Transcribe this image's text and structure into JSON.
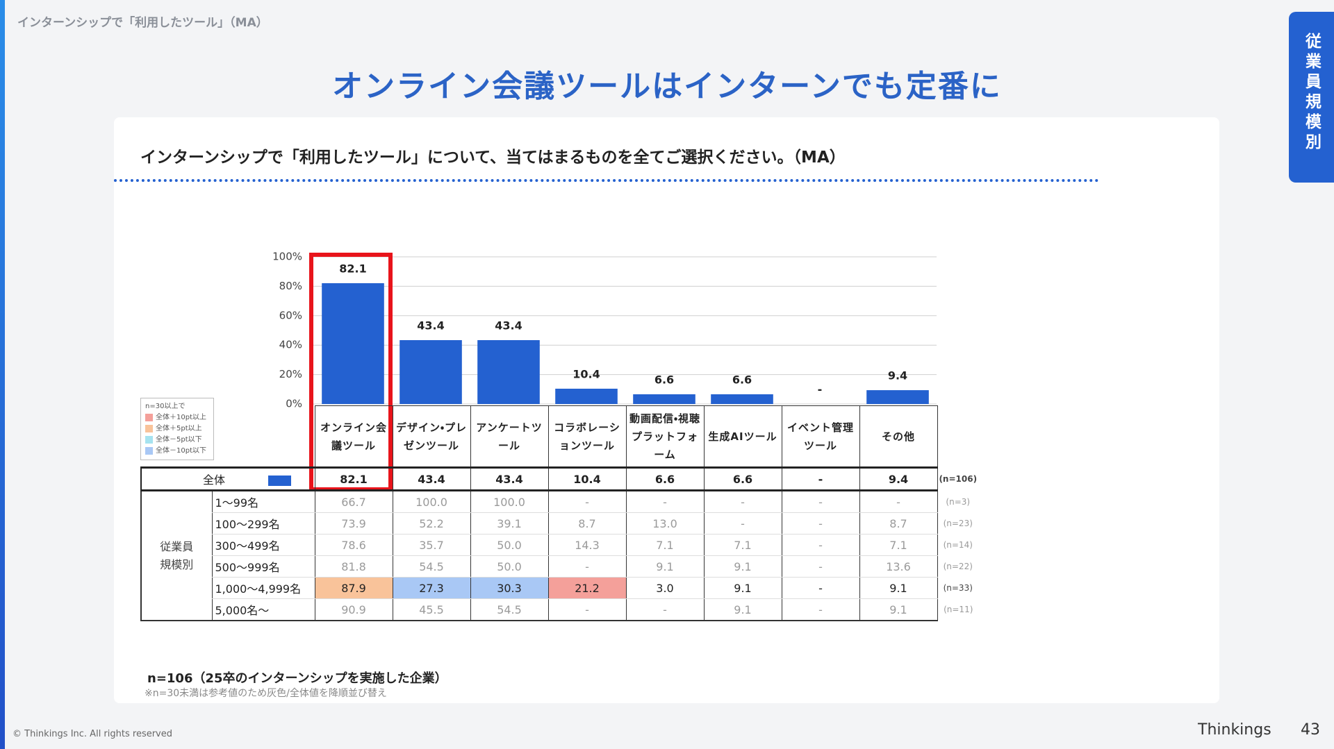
{
  "header": {
    "breadcrumb": "インターンシップで「利用したツール」（MA）",
    "title": "オンライン会議ツールはインターンでも定番に",
    "tab": "従業員規模別"
  },
  "question": "インターンシップで「利用したツール」について、当てはまるものを全てご選択ください。（MA）",
  "chart_data": {
    "type": "bar",
    "categories": [
      "オンライン会議ツール",
      "デザイン・プレゼンツール",
      "アンケートツール",
      "コラボレーションツール",
      "動画配信・視聴プラットフォーム",
      "生成AIツール",
      "イベント管理ツール",
      "その他"
    ],
    "values": [
      82.1,
      43.4,
      43.4,
      10.4,
      6.6,
      6.6,
      null,
      9.4
    ],
    "value_labels": [
      "82.1",
      "43.4",
      "43.4",
      "10.4",
      "6.6",
      "6.6",
      "-",
      "9.4"
    ],
    "color": "#2461d0",
    "ylim": [
      0,
      100
    ],
    "yticks": [
      {
        "value": 0,
        "label": "0%"
      },
      {
        "value": 20,
        "label": "20%"
      },
      {
        "value": 40,
        "label": "40%"
      },
      {
        "value": 60,
        "label": "60%"
      },
      {
        "value": 80,
        "label": "80%"
      },
      {
        "value": 100,
        "label": "100%"
      }
    ],
    "grid": true
  },
  "legend": {
    "title": "n=30以上で",
    "items": [
      {
        "label": "全体＋10pt以上",
        "color": "#f4a09a"
      },
      {
        "label": "全体＋5pt以上",
        "color": "#f9c39a"
      },
      {
        "label": "全体－5pt以下",
        "color": "#a6e3f0"
      },
      {
        "label": "全体－10pt以下",
        "color": "#a9c8f5"
      }
    ]
  },
  "table": {
    "total_label": "全体",
    "total_n": "(n=106)",
    "group": "従業員規模別",
    "rows": [
      {
        "name": "1〜99名",
        "n": "(n=3)",
        "muted": true,
        "cells": [
          "66.7",
          "100.0",
          "100.0",
          "-",
          "-",
          "-",
          "-",
          "-"
        ],
        "cell_colors": [
          null,
          null,
          null,
          null,
          null,
          null,
          null,
          null
        ]
      },
      {
        "name": "100〜299名",
        "n": "(n=23)",
        "muted": true,
        "cells": [
          "73.9",
          "52.2",
          "39.1",
          "8.7",
          "13.0",
          "-",
          "-",
          "8.7"
        ],
        "cell_colors": [
          null,
          null,
          null,
          null,
          null,
          null,
          null,
          null
        ]
      },
      {
        "name": "300〜499名",
        "n": "(n=14)",
        "muted": true,
        "cells": [
          "78.6",
          "35.7",
          "50.0",
          "14.3",
          "7.1",
          "7.1",
          "-",
          "7.1"
        ],
        "cell_colors": [
          null,
          null,
          null,
          null,
          null,
          null,
          null,
          null
        ]
      },
      {
        "name": "500〜999名",
        "n": "(n=22)",
        "muted": true,
        "cells": [
          "81.8",
          "54.5",
          "50.0",
          "-",
          "9.1",
          "9.1",
          "-",
          "13.6"
        ],
        "cell_colors": [
          null,
          null,
          null,
          null,
          null,
          null,
          null,
          null
        ]
      },
      {
        "name": "1,000〜4,999名",
        "n": "(n=33)",
        "muted": false,
        "cells": [
          "87.9",
          "27.3",
          "30.3",
          "21.2",
          "3.0",
          "9.1",
          "-",
          "9.1"
        ],
        "cell_colors": [
          "#f9c39a",
          "#a9c8f5",
          "#a9c8f5",
          "#f4a09a",
          null,
          null,
          null,
          null
        ]
      },
      {
        "name": "5,000名〜",
        "n": "(n=11)",
        "muted": true,
        "cells": [
          "90.9",
          "45.5",
          "54.5",
          "-",
          "-",
          "9.1",
          "-",
          "9.1"
        ],
        "cell_colors": [
          null,
          null,
          null,
          null,
          null,
          null,
          null,
          null
        ]
      }
    ]
  },
  "footer": {
    "sample": "n=106（25卒のインターンシップを実施した企業）",
    "note": "※n=30未満は参考値のため灰色/全体値を降順並び替え",
    "copyright": "© Thinkings Inc. All rights reserved",
    "brand": "Thinkings",
    "page": "43"
  }
}
